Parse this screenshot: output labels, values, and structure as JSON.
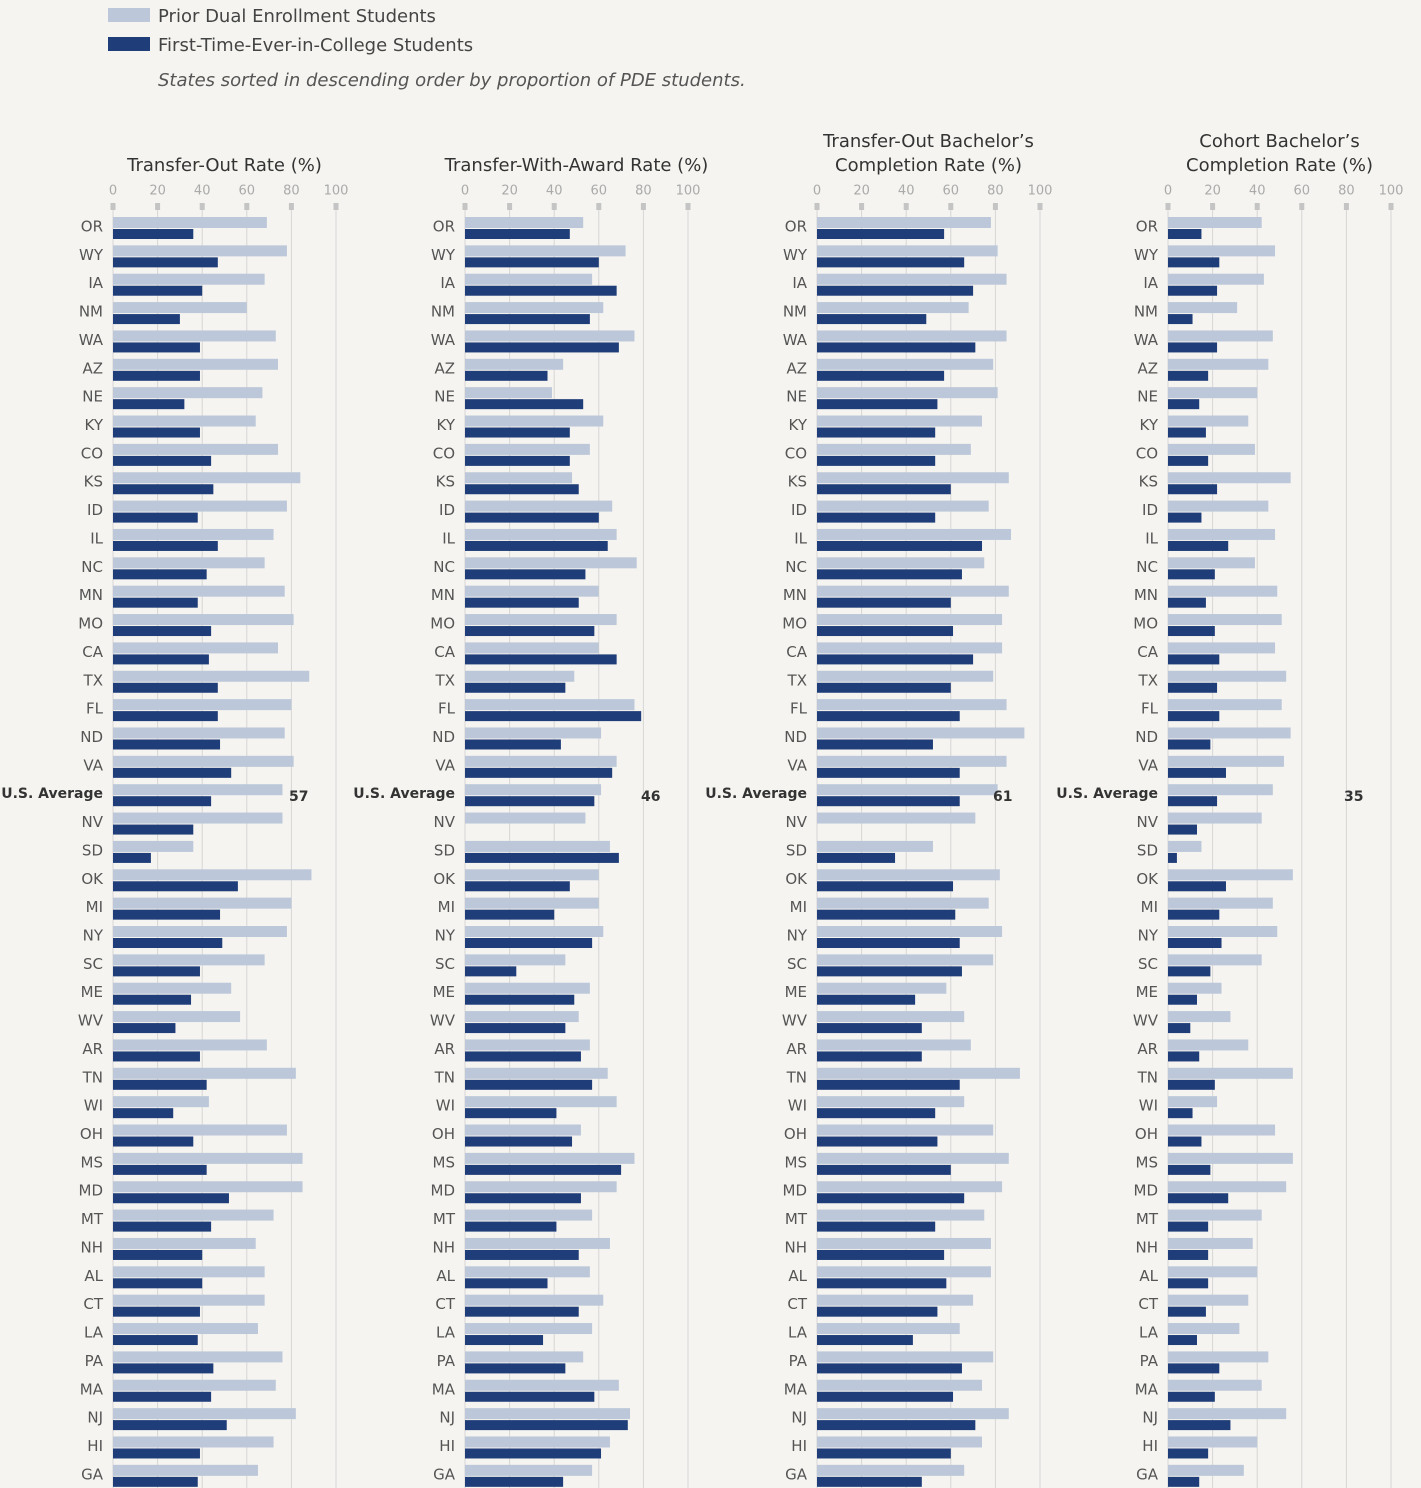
{
  "note": "States sorted in descending order by proportion of PDE students.",
  "chart_data": [
    {
      "type": "bar",
      "title": [
        "Transfer-Out Rate (%)"
      ],
      "highlight": 20,
      "annotation": 57,
      "categories": [
        "OR",
        "WY",
        "IA",
        "NM",
        "WA",
        "AZ",
        "NE",
        "KY",
        "CO",
        "KS",
        "ID",
        "IL",
        "NC",
        "MN",
        "MO",
        "CA",
        "TX",
        "FL",
        "ND",
        "VA",
        "U.S. Average",
        "NV",
        "SD",
        "OK",
        "MI",
        "NY",
        "SC",
        "ME",
        "WV",
        "AR",
        "TN",
        "WI",
        "OH",
        "MS",
        "MD",
        "MT",
        "NH",
        "AL",
        "CT",
        "LA",
        "PA",
        "MA",
        "NJ",
        "HI",
        "GA"
      ],
      "series": [
        {
          "name": "Prior Dual Enrollment Students",
          "color": "#bcc8d9",
          "values": [
            69,
            78,
            68,
            60,
            73,
            74,
            67,
            64,
            74,
            84,
            78,
            72,
            68,
            77,
            81,
            74,
            88,
            80,
            77,
            81,
            76,
            76,
            36,
            89,
            80,
            78,
            68,
            53,
            57,
            69,
            82,
            43,
            78,
            85,
            85,
            72,
            64,
            68,
            68,
            65,
            76,
            73,
            82,
            72,
            65
          ]
        },
        {
          "name": "First-Time-Ever-in-College Students",
          "color": "#1f3d78",
          "values": [
            36,
            47,
            40,
            30,
            39,
            39,
            32,
            39,
            44,
            45,
            38,
            47,
            42,
            38,
            44,
            43,
            47,
            47,
            48,
            53,
            44,
            36,
            17,
            56,
            48,
            49,
            39,
            35,
            28,
            39,
            42,
            27,
            36,
            42,
            52,
            44,
            40,
            40,
            39,
            38,
            45,
            44,
            51,
            39,
            38
          ]
        }
      ],
      "xlim": [
        0,
        100
      ],
      "xticks": [
        0,
        20,
        40,
        60,
        80,
        100
      ]
    },
    {
      "type": "bar",
      "title": [
        "Transfer-With-Award Rate (%)"
      ],
      "highlight": 20,
      "annotation": 46,
      "categories": [
        "OR",
        "WY",
        "IA",
        "NM",
        "WA",
        "AZ",
        "NE",
        "KY",
        "CO",
        "KS",
        "ID",
        "IL",
        "NC",
        "MN",
        "MO",
        "CA",
        "TX",
        "FL",
        "ND",
        "VA",
        "U.S. Average",
        "NV",
        "SD",
        "OK",
        "MI",
        "NY",
        "SC",
        "ME",
        "WV",
        "AR",
        "TN",
        "WI",
        "OH",
        "MS",
        "MD",
        "MT",
        "NH",
        "AL",
        "CT",
        "LA",
        "PA",
        "MA",
        "NJ",
        "HI",
        "GA"
      ],
      "series": [
        {
          "name": "Prior Dual Enrollment Students",
          "color": "#bcc8d9",
          "values": [
            53,
            72,
            57,
            62,
            76,
            44,
            39,
            62,
            56,
            48,
            66,
            68,
            77,
            60,
            68,
            60,
            49,
            76,
            61,
            68,
            61,
            54,
            65,
            60,
            60,
            62,
            45,
            56,
            51,
            56,
            64,
            68,
            52,
            76,
            68,
            57,
            65,
            56,
            62,
            57,
            53,
            69,
            74,
            65,
            57
          ]
        },
        {
          "name": "First-Time-Ever-in-College Students",
          "color": "#1f3d78",
          "values": [
            47,
            60,
            68,
            56,
            69,
            37,
            53,
            47,
            47,
            51,
            60,
            64,
            54,
            51,
            58,
            68,
            45,
            79,
            43,
            66,
            58,
            null,
            69,
            47,
            40,
            57,
            23,
            49,
            45,
            52,
            57,
            41,
            48,
            70,
            52,
            41,
            51,
            37,
            51,
            35,
            45,
            58,
            73,
            61,
            44
          ]
        }
      ],
      "xlim": [
        0,
        100
      ],
      "xticks": [
        0,
        20,
        40,
        60,
        80,
        100
      ]
    },
    {
      "type": "bar",
      "title": [
        "Transfer-Out Bachelor’s",
        "Completion Rate (%)"
      ],
      "highlight": 20,
      "annotation": 61,
      "categories": [
        "OR",
        "WY",
        "IA",
        "NM",
        "WA",
        "AZ",
        "NE",
        "KY",
        "CO",
        "KS",
        "ID",
        "IL",
        "NC",
        "MN",
        "MO",
        "CA",
        "TX",
        "FL",
        "ND",
        "VA",
        "U.S. Average",
        "NV",
        "SD",
        "OK",
        "MI",
        "NY",
        "SC",
        "ME",
        "WV",
        "AR",
        "TN",
        "WI",
        "OH",
        "MS",
        "MD",
        "MT",
        "NH",
        "AL",
        "CT",
        "LA",
        "PA",
        "MA",
        "NJ",
        "HI",
        "GA"
      ],
      "series": [
        {
          "name": "Prior Dual Enrollment Students",
          "color": "#bcc8d9",
          "values": [
            78,
            81,
            85,
            68,
            85,
            79,
            81,
            74,
            69,
            86,
            77,
            87,
            75,
            86,
            83,
            83,
            79,
            85,
            93,
            85,
            81,
            71,
            52,
            82,
            77,
            83,
            79,
            58,
            66,
            69,
            91,
            66,
            79,
            86,
            83,
            75,
            78,
            78,
            70,
            64,
            79,
            74,
            86,
            74,
            66
          ]
        },
        {
          "name": "First-Time-Ever-in-College Students",
          "color": "#1f3d78",
          "values": [
            57,
            66,
            70,
            49,
            71,
            57,
            54,
            53,
            53,
            60,
            53,
            74,
            65,
            60,
            61,
            70,
            60,
            64,
            52,
            64,
            64,
            null,
            35,
            61,
            62,
            64,
            65,
            44,
            47,
            47,
            64,
            53,
            54,
            60,
            66,
            53,
            57,
            58,
            54,
            43,
            65,
            61,
            71,
            60,
            47
          ]
        }
      ],
      "xlim": [
        0,
        100
      ],
      "xticks": [
        0,
        20,
        40,
        60,
        80,
        100
      ]
    },
    {
      "type": "bar",
      "title": [
        "Cohort Bachelor’s",
        "Completion Rate (%)"
      ],
      "highlight": 20,
      "annotation": 35,
      "categories": [
        "OR",
        "WY",
        "IA",
        "NM",
        "WA",
        "AZ",
        "NE",
        "KY",
        "CO",
        "KS",
        "ID",
        "IL",
        "NC",
        "MN",
        "MO",
        "CA",
        "TX",
        "FL",
        "ND",
        "VA",
        "U.S. Average",
        "NV",
        "SD",
        "OK",
        "MI",
        "NY",
        "SC",
        "ME",
        "WV",
        "AR",
        "TN",
        "WI",
        "OH",
        "MS",
        "MD",
        "MT",
        "NH",
        "AL",
        "CT",
        "LA",
        "PA",
        "MA",
        "NJ",
        "HI",
        "GA"
      ],
      "series": [
        {
          "name": "Prior Dual Enrollment Students",
          "color": "#bcc8d9",
          "values": [
            42,
            48,
            43,
            31,
            47,
            45,
            40,
            36,
            39,
            55,
            45,
            48,
            39,
            49,
            51,
            48,
            53,
            51,
            55,
            52,
            47,
            42,
            15,
            56,
            47,
            49,
            42,
            24,
            28,
            36,
            56,
            22,
            48,
            56,
            53,
            42,
            38,
            40,
            36,
            32,
            45,
            42,
            53,
            40,
            34
          ]
        },
        {
          "name": "First-Time-Ever-in-College Students",
          "color": "#1f3d78",
          "values": [
            15,
            23,
            22,
            11,
            22,
            18,
            14,
            17,
            18,
            22,
            15,
            27,
            21,
            17,
            21,
            23,
            22,
            23,
            19,
            26,
            22,
            13,
            4,
            26,
            23,
            24,
            19,
            13,
            10,
            14,
            21,
            11,
            15,
            19,
            27,
            18,
            18,
            18,
            17,
            13,
            23,
            21,
            28,
            18,
            14
          ]
        }
      ],
      "xlim": [
        0,
        100
      ],
      "xticks": [
        0,
        20,
        40,
        60,
        80,
        100
      ]
    }
  ]
}
